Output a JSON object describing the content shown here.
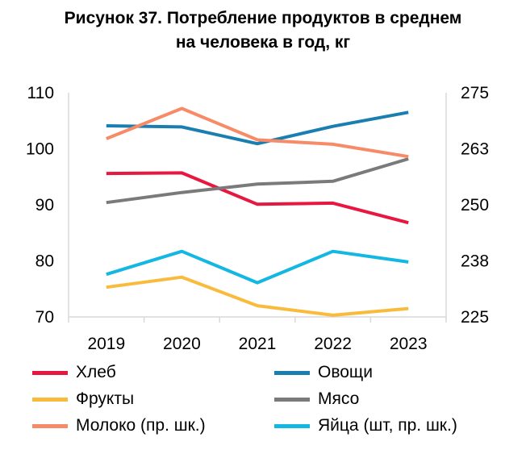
{
  "chart_data": {
    "type": "line",
    "title": [
      "Рисунок 37. Потребление продуктов в среднем",
      "на человека в год, кг"
    ],
    "x": [
      "2019",
      "2020",
      "2021",
      "2022",
      "2023"
    ],
    "y_left": {
      "range": [
        70,
        110
      ],
      "ticks": [
        "70",
        "80",
        "90",
        "100",
        "110"
      ]
    },
    "y_right": {
      "range": [
        225,
        275
      ],
      "ticks": [
        "225",
        "238",
        "250",
        "263",
        "275"
      ]
    },
    "grid": false,
    "legend_position": "bottom",
    "series": [
      {
        "name": "Хлеб",
        "color": "#e8173f",
        "values": [
          95.6,
          95.7,
          90.1,
          90.3,
          86.8
        ]
      },
      {
        "name": "Овощи",
        "color": "#1a7fb0",
        "values": [
          104.1,
          103.9,
          100.9,
          104.0,
          106.5
        ]
      },
      {
        "name": "Фрукты",
        "color": "#f9bb3c",
        "values": [
          75.3,
          77.1,
          72.0,
          70.3,
          71.5
        ]
      },
      {
        "name": "Мясо",
        "color": "#7a7a7a",
        "values": [
          90.4,
          92.2,
          93.7,
          94.2,
          98.2
        ]
      },
      {
        "name": "Молоко (пр. шк.)",
        "color": "#f78b68",
        "values": [
          101.8,
          107.2,
          101.6,
          100.8,
          98.6
        ]
      },
      {
        "name": "Яйца (шт, пр. шк.)",
        "color": "#12b7e2",
        "values": [
          77.6,
          81.7,
          76.1,
          81.7,
          79.8
        ]
      }
    ]
  }
}
